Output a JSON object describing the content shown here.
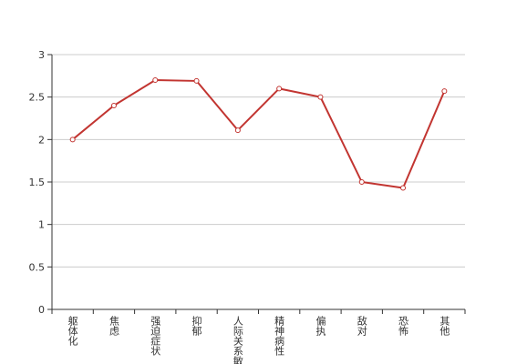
{
  "chart_data": {
    "type": "line",
    "categories": [
      "躯体化",
      "焦虑",
      "强迫症状",
      "抑郁",
      "人际关系敏感",
      "精神病性",
      "偏执",
      "敌对",
      "恐怖",
      "其他"
    ],
    "series": [
      {
        "color": "#c23531",
        "values": [
          2.0,
          2.4,
          2.7,
          2.69,
          2.11,
          2.6,
          2.5,
          1.5,
          1.43,
          2.57
        ]
      }
    ],
    "ylim": [
      0,
      3
    ],
    "yticks": [
      0,
      0.5,
      1,
      1.5,
      2,
      2.5,
      3
    ],
    "grid": true
  }
}
